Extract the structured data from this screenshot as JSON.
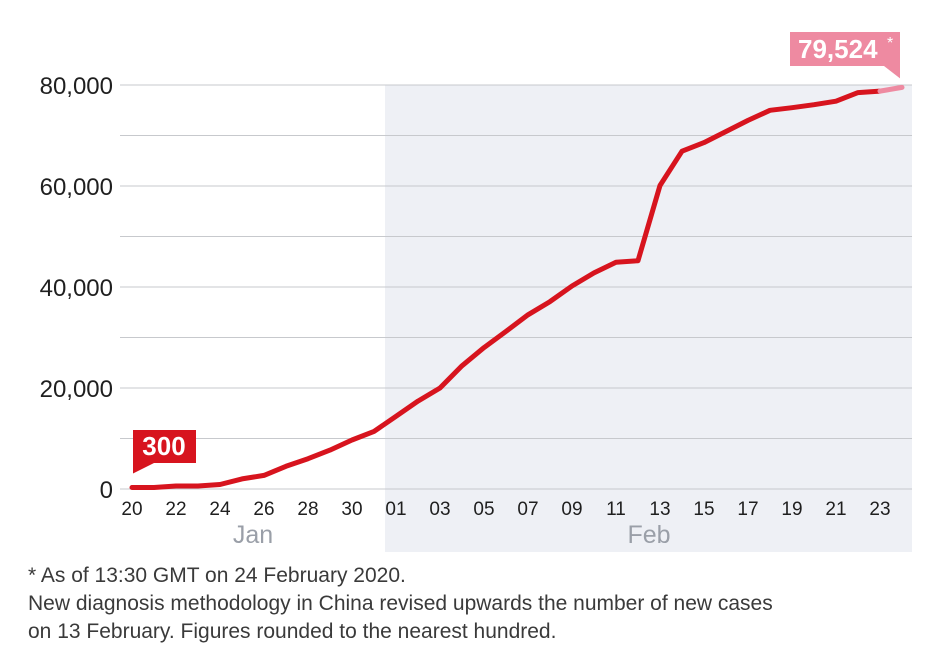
{
  "chart_data": {
    "type": "line",
    "title": "",
    "xlabel": "",
    "ylabel": "",
    "ylim": [
      0,
      80000
    ],
    "yticks": [
      "0",
      "20,000",
      "40,000",
      "60,000",
      "80,000"
    ],
    "ytick_values": [
      0,
      20000,
      40000,
      60000,
      80000
    ],
    "minor_gridlines": [
      10000,
      30000,
      50000,
      70000
    ],
    "grid": true,
    "xtick_days": [
      0,
      2,
      4,
      6,
      8,
      10,
      12,
      14,
      16,
      18,
      20,
      22,
      24,
      26,
      28,
      30,
      32,
      34
    ],
    "xtick_labels": [
      "20",
      "22",
      "24",
      "26",
      "28",
      "30",
      "01",
      "03",
      "05",
      "07",
      "09",
      "11",
      "13",
      "15",
      "17",
      "19",
      "21",
      "23"
    ],
    "months": [
      {
        "label": "Jan",
        "start": "2020-01-20",
        "end": "2020-01-31"
      },
      {
        "label": "Feb",
        "start": "2020-02-01",
        "end": "2020-02-24"
      }
    ],
    "series": [
      {
        "color": "#d7141e",
        "points": [
          [
            "2020-01-20",
            300
          ],
          [
            "2020-01-21",
            300
          ],
          [
            "2020-01-22",
            600
          ],
          [
            "2020-01-23",
            600
          ],
          [
            "2020-01-24",
            900
          ],
          [
            "2020-01-25",
            2000
          ],
          [
            "2020-01-26",
            2700
          ],
          [
            "2020-01-27",
            4500
          ],
          [
            "2020-01-28",
            6000
          ],
          [
            "2020-01-29",
            7700
          ],
          [
            "2020-01-30",
            9700
          ],
          [
            "2020-01-31",
            11400
          ],
          [
            "2020-02-01",
            14400
          ],
          [
            "2020-02-02",
            17400
          ],
          [
            "2020-02-03",
            20000
          ],
          [
            "2020-02-04",
            24400
          ],
          [
            "2020-02-05",
            28000
          ],
          [
            "2020-02-06",
            31200
          ],
          [
            "2020-02-07",
            34500
          ],
          [
            "2020-02-08",
            37100
          ],
          [
            "2020-02-09",
            40200
          ],
          [
            "2020-02-10",
            42800
          ],
          [
            "2020-02-11",
            44900
          ],
          [
            "2020-02-12",
            45200
          ],
          [
            "2020-02-13",
            60100
          ],
          [
            "2020-02-14",
            66900
          ],
          [
            "2020-02-15",
            68600
          ],
          [
            "2020-02-16",
            70800
          ],
          [
            "2020-02-17",
            73000
          ],
          [
            "2020-02-18",
            75000
          ],
          [
            "2020-02-19",
            75500
          ],
          [
            "2020-02-20",
            76100
          ],
          [
            "2020-02-21",
            76800
          ],
          [
            "2020-02-22",
            78500
          ],
          [
            "2020-02-23",
            78800
          ]
        ]
      },
      {
        "color": "#ee8aa1",
        "points": [
          [
            "2020-02-23",
            78800
          ],
          [
            "2020-02-24",
            79524
          ]
        ]
      }
    ],
    "annotations": [
      {
        "date": "2020-01-20",
        "value": 300,
        "label": "300",
        "color": "#d7141e"
      },
      {
        "date": "2020-02-24",
        "value": 79524,
        "label": "79,524",
        "suffix": "*",
        "color": "#ee8aa1"
      }
    ],
    "feb_region_color": "#eef0f5"
  },
  "footnotes": [
    "* As of 13:30 GMT on 24 February 2020.",
    "New diagnosis methodology in China revised upwards the number of new cases",
    "on 13 February. Figures rounded to the nearest hundred."
  ]
}
